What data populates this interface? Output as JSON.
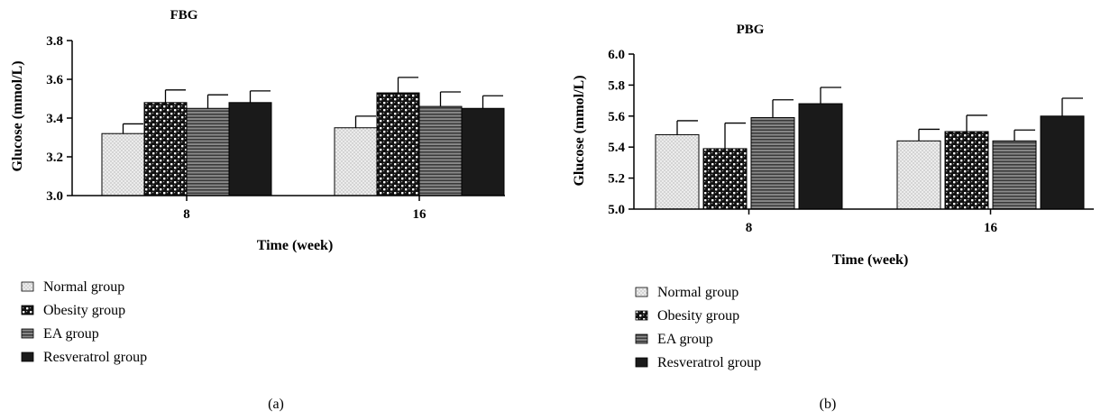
{
  "patterns": [
    "dots",
    "checker",
    "hstripes",
    "solid"
  ],
  "colors": {
    "axis": "#000000",
    "solid": "#1a1a1a",
    "light_fill": "#e9e9e9",
    "stripe_fill": "#6b6b6b"
  },
  "chart_data": [
    {
      "type": "bar",
      "title": "FBG",
      "xlabel": "Time (week)",
      "ylabel": "Glucose (mmol/L)",
      "categories": [
        "8",
        "16"
      ],
      "ylim": [
        3.0,
        3.8
      ],
      "yticks": [
        "3.0",
        "3.2",
        "3.4",
        "3.6",
        "3.8"
      ],
      "grid": false,
      "legend_position": "bottom-left",
      "series": [
        {
          "name": "Normal group",
          "values": [
            3.32,
            3.35
          ],
          "errors": [
            0.05,
            0.06
          ]
        },
        {
          "name": "Obesity group",
          "values": [
            3.48,
            3.53
          ],
          "errors": [
            0.065,
            0.08
          ]
        },
        {
          "name": "EA group",
          "values": [
            3.45,
            3.46
          ],
          "errors": [
            0.07,
            0.075
          ]
        },
        {
          "name": "Resveratrol group",
          "values": [
            3.48,
            3.45
          ],
          "errors": [
            0.06,
            0.065
          ]
        }
      ],
      "caption": "(a)"
    },
    {
      "type": "bar",
      "title": "PBG",
      "xlabel": "Time (week)",
      "ylabel": "Glucose (mmol/L)",
      "categories": [
        "8",
        "16"
      ],
      "ylim": [
        5.0,
        6.0
      ],
      "yticks": [
        "5.0",
        "5.2",
        "5.4",
        "5.6",
        "5.8",
        "6.0"
      ],
      "grid": false,
      "legend_position": "bottom-left",
      "series": [
        {
          "name": "Normal group",
          "values": [
            5.48,
            5.44
          ],
          "errors": [
            0.09,
            0.075
          ]
        },
        {
          "name": "Obesity group",
          "values": [
            5.39,
            5.5
          ],
          "errors": [
            0.165,
            0.105
          ]
        },
        {
          "name": "EA group",
          "values": [
            5.59,
            5.44
          ],
          "errors": [
            0.115,
            0.07
          ]
        },
        {
          "name": "Resveratrol group",
          "values": [
            5.68,
            5.6
          ],
          "errors": [
            0.105,
            0.115
          ]
        }
      ],
      "caption": "(b)"
    }
  ]
}
